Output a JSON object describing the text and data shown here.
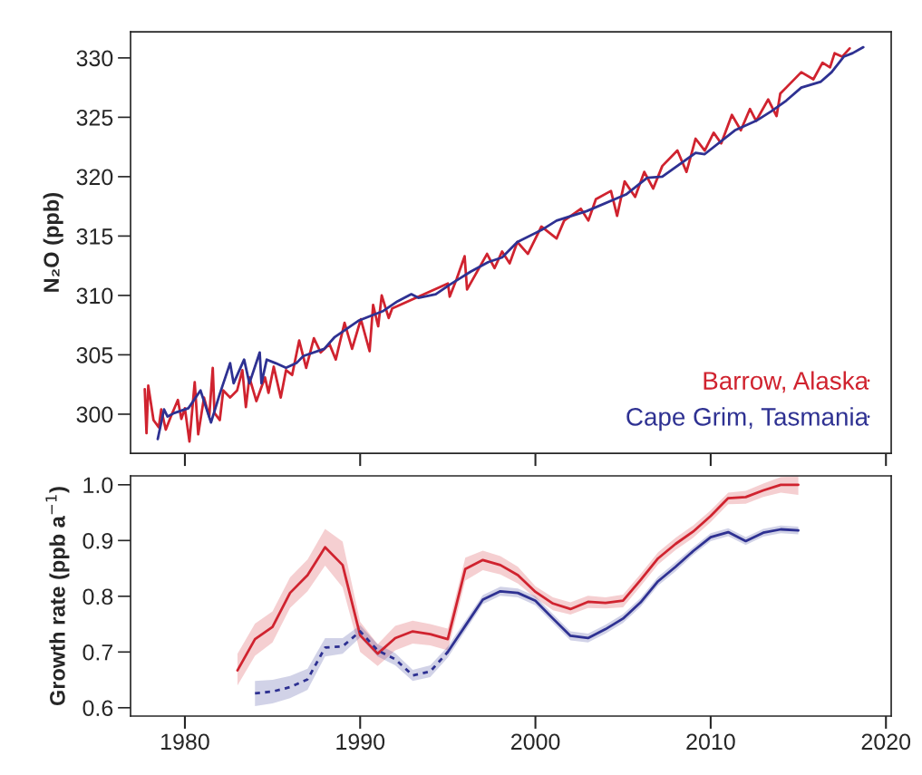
{
  "chart_data": [
    {
      "type": "line",
      "ylabel": "N₂O (ppb)",
      "xlim": [
        1976.9,
        2020.3
      ],
      "xticks": [
        1980,
        1990,
        2000,
        2010,
        2020
      ],
      "ylim": [
        296.7,
        332.2
      ],
      "yticks": [
        300,
        305,
        310,
        315,
        320,
        325,
        330
      ],
      "tick_labels": "y",
      "grid": false,
      "legend": "bottom right",
      "line_style": "solid",
      "marker": "none",
      "series": [
        {
          "name": "Barrow, Alaska",
          "color": "#d0232f",
          "x": [
            1977.71,
            1977.81,
            1977.91,
            1978.21,
            1978.51,
            1978.65,
            1978.91,
            1979.2,
            1979.6,
            1979.8,
            1980.0,
            1980.26,
            1980.56,
            1980.76,
            1981.09,
            1981.39,
            1981.59,
            1981.69,
            1981.99,
            1982.19,
            1982.58,
            1982.98,
            1983.28,
            1983.48,
            1983.68,
            1984.08,
            1984.57,
            1984.77,
            1985.07,
            1985.47,
            1985.77,
            1986.12,
            1986.52,
            1986.92,
            1987.36,
            1987.75,
            1988.25,
            1988.61,
            1989.11,
            1989.54,
            1990.04,
            1990.54,
            1990.74,
            1991.03,
            1991.23,
            1991.63,
            1991.83,
            1995.01,
            1995.11,
            1995.51,
            1995.96,
            1996.1,
            1997.24,
            1997.67,
            1998.1,
            1998.53,
            1998.97,
            1999.57,
            2000.34,
            2001.21,
            2001.64,
            2002.59,
            2003.02,
            2003.45,
            2004.31,
            2004.66,
            2005.09,
            2005.69,
            2006.21,
            2006.72,
            2007.24,
            2008.1,
            2008.62,
            2009.14,
            2009.66,
            2010.17,
            2010.6,
            2011.21,
            2011.72,
            2012.24,
            2012.59,
            2013.28,
            2013.76,
            2013.97,
            2014.31,
            2015.17,
            2015.86,
            2016.38,
            2016.81,
            2017.07,
            2017.5,
            2017.93
          ],
          "values": [
            302.1,
            298.4,
            302.4,
            299.5,
            298.9,
            300.4,
            298.7,
            299.8,
            301.2,
            299.6,
            300.5,
            297.7,
            302.7,
            298.3,
            301.4,
            299.8,
            303.9,
            300.1,
            299.5,
            302.0,
            301.4,
            302.0,
            303.7,
            300.6,
            303.1,
            301.1,
            303.1,
            301.8,
            304.0,
            301.4,
            303.7,
            303.3,
            306.2,
            303.9,
            306.4,
            305.2,
            305.9,
            304.6,
            307.7,
            305.5,
            308.0,
            305.3,
            309.2,
            307.4,
            310.0,
            308.1,
            308.9,
            311.0,
            309.9,
            311.4,
            313.3,
            310.5,
            313.5,
            312.3,
            313.7,
            312.7,
            314.5,
            313.5,
            315.8,
            314.8,
            316.3,
            317.3,
            316.3,
            318.1,
            318.8,
            316.7,
            319.6,
            318.3,
            320.4,
            319.0,
            320.9,
            322.2,
            320.4,
            323.2,
            322.2,
            323.7,
            322.8,
            325.2,
            323.9,
            325.7,
            324.7,
            326.5,
            325.1,
            327.0,
            327.5,
            328.8,
            328.2,
            329.6,
            329.2,
            330.4,
            330.1,
            330.8
          ]
        },
        {
          "name": "Cape Grim, Tasmania",
          "color": "#2e3192",
          "x": [
            1978.45,
            1978.81,
            1979.01,
            1979.4,
            1980.2,
            1980.89,
            1981.49,
            1981.99,
            1982.58,
            1982.78,
            1983.38,
            1983.68,
            1984.27,
            1984.37,
            1984.67,
            1985.17,
            1985.77,
            1986.36,
            1986.76,
            1987.95,
            1988.55,
            1989.94,
            1991.33,
            1992.13,
            1992.92,
            1993.32,
            1994.31,
            1995.11,
            1996.3,
            1997.3,
            1998.1,
            1998.97,
            2000.34,
            2001.21,
            2002.93,
            2005.17,
            2006.38,
            2007.24,
            2009.14,
            2009.66,
            2011.38,
            2012.59,
            2013.45,
            2014.31,
            2015.17,
            2016.29,
            2016.9,
            2017.59,
            2018.1,
            2018.71
          ],
          "values": [
            297.9,
            300.4,
            299.8,
            300.1,
            300.5,
            302.0,
            299.3,
            301.7,
            304.3,
            302.6,
            304.6,
            302.6,
            305.2,
            302.6,
            304.6,
            304.3,
            303.9,
            304.3,
            304.9,
            305.5,
            306.5,
            307.9,
            308.7,
            309.5,
            310.1,
            309.8,
            310.1,
            310.9,
            312.0,
            312.8,
            313.2,
            314.5,
            315.5,
            316.3,
            317.1,
            318.5,
            319.9,
            320.0,
            322.0,
            321.9,
            323.9,
            324.7,
            325.5,
            326.4,
            327.5,
            328.0,
            328.8,
            330.1,
            330.4,
            330.9
          ]
        }
      ]
    },
    {
      "type": "line",
      "ylabel": "Growth rate (ppb a$^{−1}$)",
      "xlim": [
        1976.9,
        2020.3
      ],
      "xticks": [
        1980,
        1990,
        2000,
        2010,
        2020
      ],
      "ylim": [
        0.585,
        1.016
      ],
      "yticks": [
        {
          "value": 0.6,
          "label": "0.6"
        },
        {
          "value": 0.7,
          "label": "0.7"
        },
        {
          "value": 0.8,
          "label": "0.8"
        },
        {
          "value": 0.9,
          "label": "0.9"
        },
        {
          "value": 1.0,
          "label": "1.0"
        }
      ],
      "grid": false,
      "marker": "none",
      "series": [
        {
          "color": "#d0232f",
          "line_style": "solid",
          "x": [
            1983,
            1984,
            1985,
            1986,
            1987,
            1988,
            1989,
            1990,
            1991,
            1992,
            1993,
            1994,
            1995,
            1996,
            1997,
            1998,
            1999,
            2000,
            2001,
            2002,
            2003,
            2004,
            2005,
            2006,
            2007,
            2008,
            2009,
            2010,
            2011,
            2012,
            2013,
            2014,
            2015
          ],
          "values": [
            0.667,
            0.723,
            0.745,
            0.806,
            0.838,
            0.888,
            0.856,
            0.73,
            0.697,
            0.725,
            0.737,
            0.732,
            0.723,
            0.849,
            0.865,
            0.856,
            0.838,
            0.808,
            0.787,
            0.777,
            0.79,
            0.788,
            0.792,
            0.829,
            0.868,
            0.894,
            0.916,
            0.944,
            0.976,
            0.978,
            0.99,
            1.0,
            1.0
          ],
          "upper": [
            0.697,
            0.751,
            0.773,
            0.834,
            0.866,
            0.921,
            0.898,
            0.754,
            0.714,
            0.747,
            0.756,
            0.75,
            0.742,
            0.869,
            0.882,
            0.872,
            0.853,
            0.818,
            0.798,
            0.789,
            0.801,
            0.798,
            0.803,
            0.84,
            0.879,
            0.905,
            0.927,
            0.954,
            0.986,
            0.989,
            1.002,
            1.014,
            1.015
          ],
          "lower": [
            0.64,
            0.693,
            0.717,
            0.779,
            0.809,
            0.855,
            0.816,
            0.7,
            0.675,
            0.703,
            0.715,
            0.712,
            0.703,
            0.828,
            0.847,
            0.839,
            0.823,
            0.797,
            0.775,
            0.767,
            0.779,
            0.778,
            0.78,
            0.818,
            0.857,
            0.883,
            0.905,
            0.933,
            0.965,
            0.966,
            0.978,
            0.986,
            0.982
          ]
        },
        {
          "color": "#2e3192",
          "line_style": "dotted",
          "x": [
            1984,
            1985,
            1986,
            1987,
            1988,
            1989,
            1990,
            1991,
            1992,
            1993,
            1994,
            1995
          ],
          "values": [
            0.626,
            0.629,
            0.637,
            0.651,
            0.708,
            0.71,
            0.737,
            0.703,
            0.687,
            0.658,
            0.665,
            0.7
          ],
          "upper": [
            0.648,
            0.65,
            0.657,
            0.67,
            0.725,
            0.725,
            0.748,
            0.714,
            0.698,
            0.668,
            0.676,
            0.71
          ],
          "lower": [
            0.603,
            0.608,
            0.617,
            0.632,
            0.692,
            0.697,
            0.726,
            0.692,
            0.676,
            0.648,
            0.655,
            0.69
          ]
        },
        {
          "color": "#2e3192",
          "line_style": "solid",
          "x": [
            1995,
            1996,
            1997,
            1998,
            1999,
            2000,
            2001,
            2002,
            2003,
            2004,
            2005,
            2006,
            2007,
            2008,
            2009,
            2010,
            2011,
            2012,
            2013,
            2014,
            2015
          ],
          "values": [
            0.7,
            0.747,
            0.794,
            0.809,
            0.806,
            0.792,
            0.76,
            0.729,
            0.725,
            0.741,
            0.76,
            0.789,
            0.827,
            0.853,
            0.881,
            0.906,
            0.915,
            0.899,
            0.914,
            0.92,
            0.918
          ],
          "upper": [
            0.71,
            0.756,
            0.802,
            0.817,
            0.814,
            0.8,
            0.768,
            0.737,
            0.733,
            0.749,
            0.768,
            0.797,
            0.835,
            0.861,
            0.888,
            0.913,
            0.922,
            0.906,
            0.921,
            0.927,
            0.925
          ],
          "lower": [
            0.69,
            0.738,
            0.786,
            0.801,
            0.798,
            0.784,
            0.752,
            0.721,
            0.717,
            0.733,
            0.752,
            0.781,
            0.819,
            0.845,
            0.874,
            0.899,
            0.908,
            0.892,
            0.907,
            0.913,
            0.911
          ]
        }
      ]
    }
  ]
}
